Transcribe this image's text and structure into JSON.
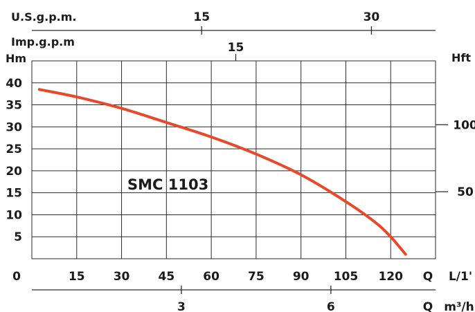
{
  "chart_data": {
    "type": "line",
    "model_label": "SMC 1103",
    "x_lpm": {
      "label": "L/1'",
      "q_label": "Q",
      "origin_label": "0",
      "range": [
        0,
        135
      ],
      "ticks": [
        15,
        30,
        45,
        60,
        75,
        90,
        105,
        120
      ]
    },
    "x_m3h": {
      "label": "m³/h",
      "q_label": "Q",
      "ticks": [
        3,
        6
      ]
    },
    "x_usgpm": {
      "label": "U.S.g.p.m.",
      "ticks": [
        15,
        30
      ]
    },
    "x_impgpm": {
      "label": "Imp.g.p.m",
      "ticks": [
        15
      ]
    },
    "y_m": {
      "label": "Hm",
      "range": [
        0,
        45
      ],
      "ticks": [
        5,
        10,
        15,
        20,
        25,
        30,
        35,
        40
      ]
    },
    "y_ft": {
      "label": "Hft",
      "ticks": [
        50,
        100
      ]
    },
    "grid": true,
    "curve_color": "#e8492b",
    "series": [
      {
        "x": [
          2.5,
          15,
          30,
          45,
          60,
          75,
          90,
          105,
          115,
          120,
          125
        ],
        "y": [
          38.5,
          36.8,
          34.2,
          31.0,
          27.7,
          23.8,
          19.1,
          13.0,
          8.2,
          5.0,
          1.0
        ]
      }
    ]
  }
}
